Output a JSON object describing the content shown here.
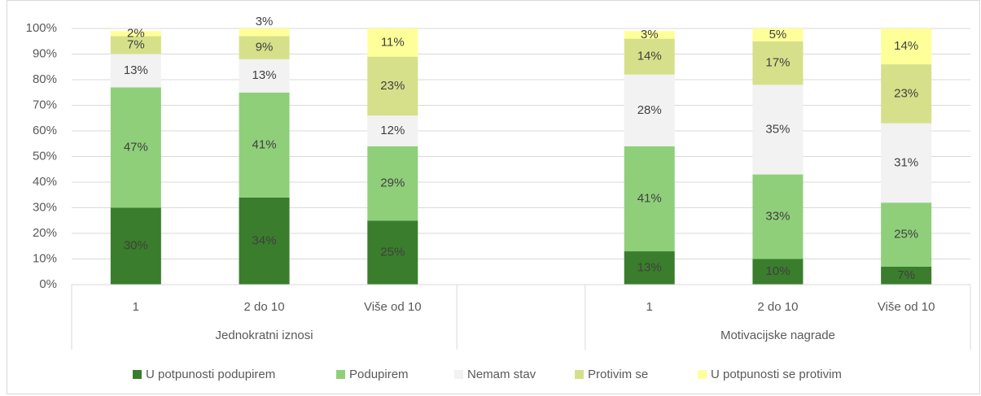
{
  "chart_data": {
    "type": "stacked_bar",
    "groups": [
      {
        "name": "Jednokratni iznosi",
        "categories": [
          "1",
          "2 do 10",
          "Više od 10"
        ]
      },
      {
        "name": "Motivacijske nagrade",
        "categories": [
          "1",
          "2 do 10",
          "Više od 10"
        ]
      }
    ],
    "series": [
      {
        "name": "U potpunosti podupirem",
        "color": "#3a7d2c",
        "values": [
          30,
          34,
          25,
          13,
          10,
          7
        ],
        "value_labels": [
          "30%",
          "34%",
          "25%",
          "13%",
          "10%",
          "7%"
        ]
      },
      {
        "name": "Podupirem",
        "color": "#8fcf7a",
        "values": [
          47,
          41,
          29,
          41,
          33,
          25
        ],
        "value_labels": [
          "47%",
          "41%",
          "29%",
          "41%",
          "33%",
          "25%"
        ]
      },
      {
        "name": "Nemam stav",
        "color": "#f2f2f2",
        "values": [
          13,
          13,
          12,
          28,
          35,
          31
        ],
        "value_labels": [
          "13%",
          "13%",
          "12%",
          "28%",
          "35%",
          "31%"
        ]
      },
      {
        "name": "Protivim se",
        "color": "#d6e08a",
        "values": [
          7,
          9,
          23,
          14,
          17,
          23
        ],
        "value_labels": [
          "7%",
          "9%",
          "23%",
          "14%",
          "17%",
          "23%"
        ]
      },
      {
        "name": "U potpunosti se protivim",
        "color": "#ffff99",
        "values": [
          2,
          3,
          11,
          3,
          5,
          14
        ],
        "value_labels": [
          "2%",
          "3%",
          "11%",
          "3%",
          "5%",
          "14%"
        ]
      }
    ],
    "ylim": [
      0,
      100
    ],
    "yticks": [
      {
        "value": 0,
        "label": "0%"
      },
      {
        "value": 10,
        "label": "10%"
      },
      {
        "value": 20,
        "label": "20%"
      },
      {
        "value": 30,
        "label": "30%"
      },
      {
        "value": 40,
        "label": "40%"
      },
      {
        "value": 50,
        "label": "50%"
      },
      {
        "value": 60,
        "label": "60%"
      },
      {
        "value": 70,
        "label": "70%"
      },
      {
        "value": 80,
        "label": "80%"
      },
      {
        "value": 90,
        "label": "90%"
      },
      {
        "value": 100,
        "label": "100%"
      }
    ],
    "grid": true,
    "legend": "bottom"
  }
}
